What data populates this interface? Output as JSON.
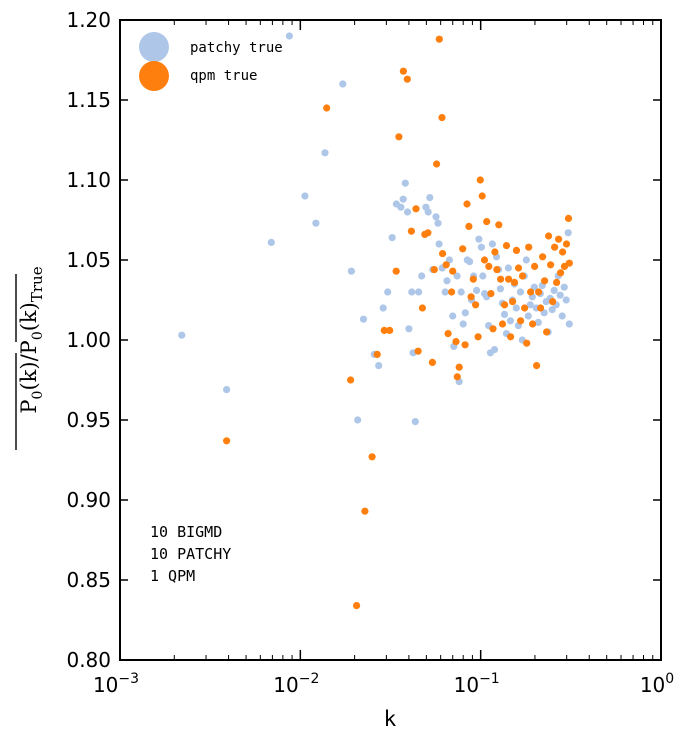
{
  "chart_data": {
    "type": "scatter",
    "xlabel": "k",
    "ylabel": {
      "num_main": "P",
      "num_sub": "0",
      "num_paren": "(k)",
      "den_main": "P",
      "den_sub": "0",
      "den_paren": "(k)",
      "den_label": "True"
    },
    "xscale": "log",
    "xlim": [
      0.001,
      1
    ],
    "ylim": [
      0.8,
      1.2
    ],
    "xticks": [
      {
        "base": "10",
        "exp": "−3"
      },
      {
        "base": "10",
        "exp": "−2"
      },
      {
        "base": "10",
        "exp": "−1"
      },
      {
        "base": "10",
        "exp": "0"
      }
    ],
    "yticks": [
      "0.80",
      "0.85",
      "0.90",
      "0.95",
      "1.00",
      "1.05",
      "1.10",
      "1.15",
      "1.20"
    ],
    "legend_position": "top-left",
    "annotations": [
      "10 BIGMD",
      "10 PATCHY",
      "1 QPM"
    ],
    "colors": {
      "patchy": "#aec7e8",
      "qpm": "#ff7f0e"
    },
    "series": [
      {
        "name": "patchy true",
        "points": [
          [
            0.0022,
            1.003
          ],
          [
            0.0039,
            0.969
          ],
          [
            0.0069,
            1.061
          ],
          [
            0.0087,
            1.19
          ],
          [
            0.0106,
            1.09
          ],
          [
            0.0122,
            1.073
          ],
          [
            0.0137,
            1.117
          ],
          [
            0.0172,
            1.16
          ],
          [
            0.0192,
            1.043
          ],
          [
            0.0208,
            0.95
          ],
          [
            0.0224,
            1.013
          ],
          [
            0.0257,
            0.991
          ],
          [
            0.0272,
            0.984
          ],
          [
            0.0288,
            1.02
          ],
          [
            0.0305,
            1.03
          ],
          [
            0.0323,
            1.064
          ],
          [
            0.0341,
            1.085
          ],
          [
            0.0361,
            1.083
          ],
          [
            0.0372,
            1.088
          ],
          [
            0.0382,
            1.098
          ],
          [
            0.0393,
            1.08
          ],
          [
            0.04,
            1.007
          ],
          [
            0.0415,
            1.03
          ],
          [
            0.0422,
            0.992
          ],
          [
            0.0434,
            0.949
          ],
          [
            0.0453,
            1.03
          ],
          [
            0.0471,
            1.04
          ],
          [
            0.0497,
            1.083
          ],
          [
            0.0512,
            1.08
          ],
          [
            0.0522,
            1.089
          ],
          [
            0.0543,
            1.044
          ],
          [
            0.0565,
            1.077
          ],
          [
            0.058,
            1.073
          ],
          [
            0.0588,
            1.06
          ],
          [
            0.0612,
            1.045
          ],
          [
            0.0636,
            1.03
          ],
          [
            0.0651,
            1.037
          ],
          [
            0.0671,
            1.05
          ],
          [
            0.07,
            1.015
          ],
          [
            0.071,
            0.996
          ],
          [
            0.074,
            1.04
          ],
          [
            0.076,
            0.974
          ],
          [
            0.078,
            1.03
          ],
          [
            0.08,
            1.01
          ],
          [
            0.0822,
            1.017
          ],
          [
            0.0843,
            1.05
          ],
          [
            0.0868,
            1.049
          ],
          [
            0.0891,
            1.025
          ],
          [
            0.0914,
            1.04
          ],
          [
            0.095,
            1.031
          ],
          [
            0.0978,
            1.063
          ],
          [
            0.101,
            1.058
          ],
          [
            0.1027,
            1.04
          ],
          [
            0.1052,
            1.029
          ],
          [
            0.1079,
            1.027
          ],
          [
            0.1106,
            1.009
          ],
          [
            0.1133,
            0.992
          ],
          [
            0.1162,
            1.06
          ],
          [
            0.1193,
            0.994
          ],
          [
            0.1224,
            1.052
          ],
          [
            0.1256,
            1.044
          ],
          [
            0.1287,
            1.032
          ],
          [
            0.132,
            1.023
          ],
          [
            0.1355,
            1.016
          ],
          [
            0.139,
            1.004
          ],
          [
            0.1425,
            1.045
          ],
          [
            0.1461,
            1.012
          ],
          [
            0.15,
            1.025
          ],
          [
            0.1538,
            1.035
          ],
          [
            0.1577,
            1.02
          ],
          [
            0.1618,
            1.009
          ],
          [
            0.166,
            1.03
          ],
          [
            0.1702,
            1.0
          ],
          [
            0.1746,
            1.04
          ],
          [
            0.1791,
            1.05
          ],
          [
            0.1838,
            1.015
          ],
          [
            0.1885,
            1.022
          ],
          [
            0.1933,
            1.027
          ],
          [
            0.1983,
            1.033
          ],
          [
            0.2034,
            1.02
          ],
          [
            0.2087,
            1.011
          ],
          [
            0.214,
            1.029
          ],
          [
            0.2196,
            1.034
          ],
          [
            0.2252,
            1.017
          ],
          [
            0.231,
            1.024
          ],
          [
            0.237,
            1.005
          ],
          [
            0.2431,
            1.026
          ],
          [
            0.2494,
            1.019
          ],
          [
            0.2558,
            1.031
          ],
          [
            0.2624,
            1.022
          ],
          [
            0.2692,
            1.04
          ],
          [
            0.2761,
            1.028
          ],
          [
            0.2832,
            1.015
          ],
          [
            0.2905,
            1.033
          ],
          [
            0.298,
            1.025
          ],
          [
            0.3057,
            1.067
          ],
          [
            0.31,
            1.01
          ]
        ]
      },
      {
        "name": "qpm true",
        "points": [
          [
            0.0039,
            0.937
          ],
          [
            0.014,
            1.145
          ],
          [
            0.019,
            0.975
          ],
          [
            0.0205,
            0.834
          ],
          [
            0.0228,
            0.893
          ],
          [
            0.025,
            0.927
          ],
          [
            0.0267,
            0.991
          ],
          [
            0.0292,
            1.006
          ],
          [
            0.0313,
            1.006
          ],
          [
            0.034,
            1.043
          ],
          [
            0.0352,
            1.127
          ],
          [
            0.0373,
            1.168
          ],
          [
            0.0392,
            1.163
          ],
          [
            0.0413,
            1.068
          ],
          [
            0.0438,
            1.082
          ],
          [
            0.045,
            0.993
          ],
          [
            0.0475,
            1.02
          ],
          [
            0.049,
            1.066
          ],
          [
            0.051,
            1.067
          ],
          [
            0.054,
            0.986
          ],
          [
            0.0553,
            1.044
          ],
          [
            0.057,
            1.11
          ],
          [
            0.059,
            1.188
          ],
          [
            0.061,
            1.139
          ],
          [
            0.0615,
            1.054
          ],
          [
            0.0644,
            1.047
          ],
          [
            0.066,
            1.004
          ],
          [
            0.069,
            1.03
          ],
          [
            0.07,
            1.043
          ],
          [
            0.073,
            0.999
          ],
          [
            0.0742,
            0.977
          ],
          [
            0.076,
            0.983
          ],
          [
            0.0795,
            1.057
          ],
          [
            0.082,
            0.997
          ],
          [
            0.084,
            1.085
          ],
          [
            0.086,
            1.071
          ],
          [
            0.0885,
            1.027
          ],
          [
            0.091,
            1.038
          ],
          [
            0.0937,
            1.022
          ],
          [
            0.0968,
            1.002
          ],
          [
            0.0995,
            1.1
          ],
          [
            0.102,
            1.09
          ],
          [
            0.105,
            1.05
          ],
          [
            0.108,
            1.074
          ],
          [
            0.111,
            1.046
          ],
          [
            0.114,
            1.029
          ],
          [
            0.117,
            1.007
          ],
          [
            0.12,
            1.055
          ],
          [
            0.123,
            1.044
          ],
          [
            0.126,
            1.072
          ],
          [
            0.129,
            1.038
          ],
          [
            0.1322,
            1.01
          ],
          [
            0.1358,
            1.022
          ],
          [
            0.139,
            1.059
          ],
          [
            0.1428,
            1.038
          ],
          [
            0.1466,
            1.002
          ],
          [
            0.1503,
            1.024
          ],
          [
            0.154,
            1.036
          ],
          [
            0.158,
            1.056
          ],
          [
            0.1622,
            1.045
          ],
          [
            0.1665,
            1.012
          ],
          [
            0.1707,
            1.04
          ],
          [
            0.1752,
            1.02
          ],
          [
            0.1799,
            0.998
          ],
          [
            0.1846,
            1.058
          ],
          [
            0.1893,
            1.03
          ],
          [
            0.1942,
            1.01
          ],
          [
            0.1992,
            1.046
          ],
          [
            0.2043,
            0.984
          ],
          [
            0.2096,
            1.03
          ],
          [
            0.215,
            1.02
          ],
          [
            0.2205,
            1.052
          ],
          [
            0.2262,
            1.037
          ],
          [
            0.232,
            1.005
          ],
          [
            0.238,
            1.065
          ],
          [
            0.2442,
            1.047
          ],
          [
            0.2506,
            1.024
          ],
          [
            0.257,
            1.058
          ],
          [
            0.2636,
            1.036
          ],
          [
            0.2704,
            1.063
          ],
          [
            0.2774,
            1.042
          ],
          [
            0.2845,
            1.055
          ],
          [
            0.2918,
            1.046
          ],
          [
            0.2993,
            1.06
          ],
          [
            0.307,
            1.076
          ],
          [
            0.31,
            1.048
          ]
        ]
      }
    ]
  }
}
